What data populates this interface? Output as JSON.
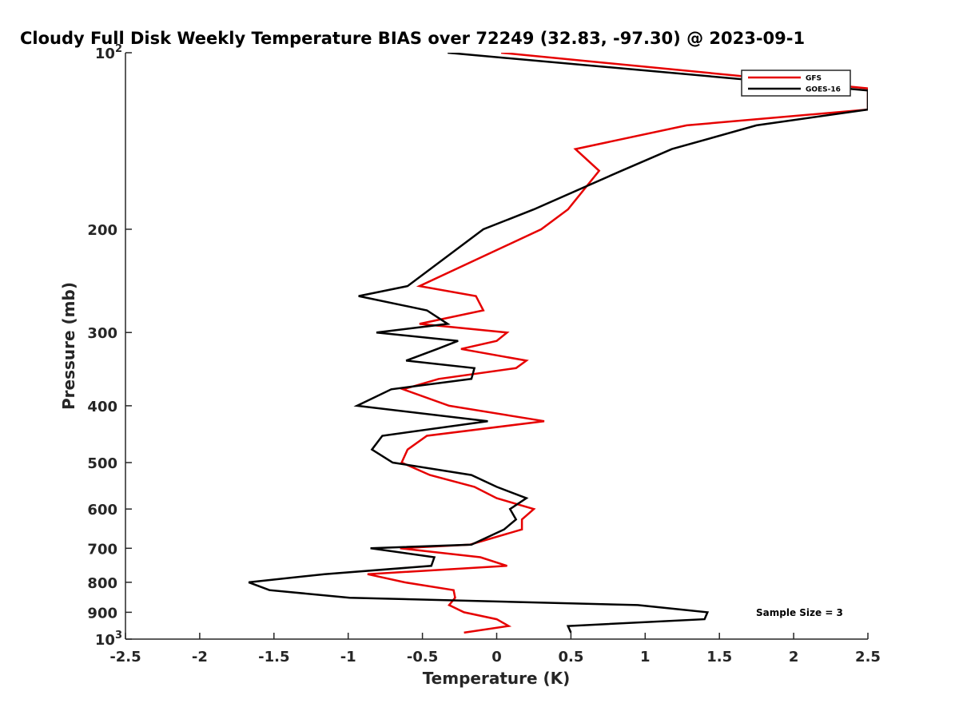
{
  "chart_data": {
    "type": "line",
    "title": "Cloudy Full Disk Weekly Temperature BIAS over 72249 (32.83, -97.30) @ 2023-09-1",
    "xlabel": "Temperature (K)",
    "ylabel": "Pressure (mb)",
    "xlim": [
      -2.5,
      2.5
    ],
    "ylim": [
      100,
      1000
    ],
    "y_scale": "log",
    "y_reversed": true,
    "x_ticks": [
      "-2.5",
      "-2",
      "-1.5",
      "-1",
      "-0.5",
      "0",
      "0.5",
      "1",
      "1.5",
      "2",
      "2.5"
    ],
    "y_ticks": [
      {
        "value": 100,
        "base": "10",
        "exp": "2"
      },
      {
        "value": 200,
        "label": "200"
      },
      {
        "value": 300,
        "label": "300"
      },
      {
        "value": 400,
        "label": "400"
      },
      {
        "value": 500,
        "label": "500"
      },
      {
        "value": 600,
        "label": "600"
      },
      {
        "value": 700,
        "label": "700"
      },
      {
        "value": 800,
        "label": "800"
      },
      {
        "value": 900,
        "label": "900"
      },
      {
        "value": 1000,
        "base": "10",
        "exp": "3"
      }
    ],
    "legend_position": "top-right",
    "annotation": "Sample Size = 3",
    "grid": false,
    "series": [
      {
        "name": "GFS",
        "color": "#e60000",
        "points": [
          [
            0.03,
            100
          ],
          [
            2.5,
            115
          ],
          [
            2.5,
            125
          ],
          [
            1.28,
            133
          ],
          [
            0.53,
            146
          ],
          [
            0.69,
            159
          ],
          [
            0.48,
            185
          ],
          [
            0.3,
            200
          ],
          [
            -0.52,
            250
          ],
          [
            -0.14,
            260
          ],
          [
            -0.09,
            275
          ],
          [
            -0.52,
            290
          ],
          [
            0.07,
            300
          ],
          [
            0.0,
            310
          ],
          [
            -0.24,
            320
          ],
          [
            0.2,
            335
          ],
          [
            0.13,
            345
          ],
          [
            -0.39,
            360
          ],
          [
            -0.63,
            375
          ],
          [
            -0.32,
            400
          ],
          [
            0.32,
            425
          ],
          [
            -0.47,
            450
          ],
          [
            -0.6,
            475
          ],
          [
            -0.64,
            500
          ],
          [
            -0.45,
            525
          ],
          [
            -0.15,
            550
          ],
          [
            0.0,
            575
          ],
          [
            0.25,
            600
          ],
          [
            0.17,
            625
          ],
          [
            0.17,
            650
          ],
          [
            -0.18,
            690
          ],
          [
            -0.65,
            700
          ],
          [
            -0.11,
            725
          ],
          [
            0.07,
            750
          ],
          [
            -0.87,
            775
          ],
          [
            -0.62,
            800
          ],
          [
            -0.29,
            825
          ],
          [
            -0.28,
            850
          ],
          [
            -0.32,
            875
          ],
          [
            -0.22,
            900
          ],
          [
            0.0,
            925
          ],
          [
            0.08,
            950
          ],
          [
            -0.22,
            975
          ]
        ]
      },
      {
        "name": "GOES-16",
        "color": "#000000",
        "points": [
          [
            -0.33,
            100
          ],
          [
            2.5,
            116
          ],
          [
            2.5,
            125
          ],
          [
            1.75,
            133
          ],
          [
            1.18,
            146
          ],
          [
            0.84,
            159
          ],
          [
            0.25,
            185
          ],
          [
            -0.09,
            200
          ],
          [
            -0.6,
            250
          ],
          [
            -0.93,
            260
          ],
          [
            -0.47,
            275
          ],
          [
            -0.33,
            290
          ],
          [
            -0.81,
            300
          ],
          [
            -0.26,
            310
          ],
          [
            -0.4,
            320
          ],
          [
            -0.61,
            335
          ],
          [
            -0.15,
            345
          ],
          [
            -0.17,
            360
          ],
          [
            -0.71,
            375
          ],
          [
            -0.94,
            400
          ],
          [
            -0.06,
            425
          ],
          [
            -0.77,
            450
          ],
          [
            -0.84,
            475
          ],
          [
            -0.7,
            500
          ],
          [
            -0.17,
            525
          ],
          [
            0.0,
            550
          ],
          [
            0.2,
            575
          ],
          [
            0.09,
            600
          ],
          [
            0.13,
            625
          ],
          [
            0.05,
            650
          ],
          [
            -0.17,
            690
          ],
          [
            -0.85,
            700
          ],
          [
            -0.42,
            725
          ],
          [
            -0.44,
            750
          ],
          [
            -1.16,
            775
          ],
          [
            -1.67,
            800
          ],
          [
            -1.53,
            825
          ],
          [
            -0.99,
            850
          ],
          [
            0.95,
            875
          ],
          [
            1.42,
            900
          ],
          [
            1.4,
            925
          ],
          [
            0.48,
            950
          ],
          [
            0.5,
            975
          ]
        ]
      }
    ]
  }
}
